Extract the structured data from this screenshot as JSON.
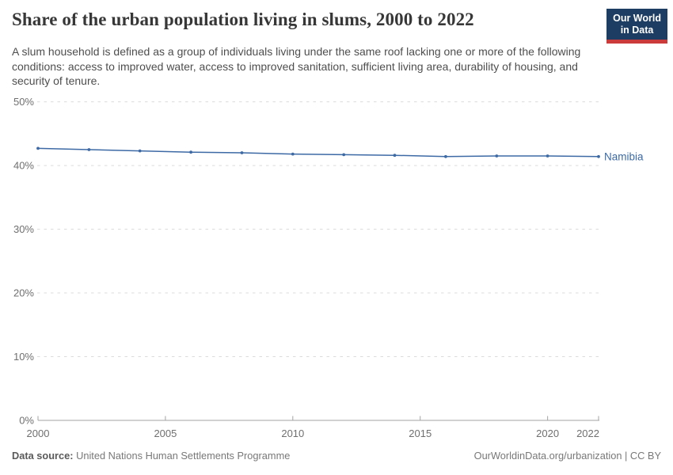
{
  "header": {
    "title": "Share of the urban population living in slums, 2000 to 2022",
    "subtitle": "A slum household is defined as a group of individuals living under the same roof lacking one or more of the following conditions: access to improved water, access to improved sanitation, sufficient living area, durability of housing, and security of tenure.",
    "logo": {
      "line1": "Our World",
      "line2": "in Data",
      "bg_color": "#1d3d63",
      "accent_color": "#cc3b3c"
    }
  },
  "chart_data": {
    "type": "line",
    "title": "Share of the urban population living in slums, 2000 to 2022",
    "xlabel": "",
    "ylabel": "",
    "xlim": [
      2000,
      2022
    ],
    "ylim": [
      0,
      50
    ],
    "x_ticks": [
      2000,
      2005,
      2010,
      2015,
      2020,
      2022
    ],
    "y_ticks": [
      0,
      10,
      20,
      30,
      40,
      50
    ],
    "y_tick_suffix": "%",
    "grid": "horizontal-dashed",
    "legend_position": "end-of-line-label",
    "series": [
      {
        "name": "Namibia",
        "color": "#3d6aa5",
        "x": [
          2000,
          2002,
          2004,
          2006,
          2008,
          2010,
          2012,
          2014,
          2016,
          2018,
          2020,
          2022
        ],
        "values": [
          42.7,
          42.5,
          42.3,
          42.1,
          42.0,
          41.8,
          41.7,
          41.6,
          41.4,
          41.5,
          41.5,
          41.4
        ]
      }
    ],
    "colors": {
      "gridline": "#dcdcdc",
      "axis": "#a3a3a3",
      "tick_label": "#6f6f6f"
    }
  },
  "footer": {
    "source_label": "Data source:",
    "source_value": " United Nations Human Settlements Programme",
    "attribution": "OurWorldinData.org/urbanization | CC BY"
  }
}
